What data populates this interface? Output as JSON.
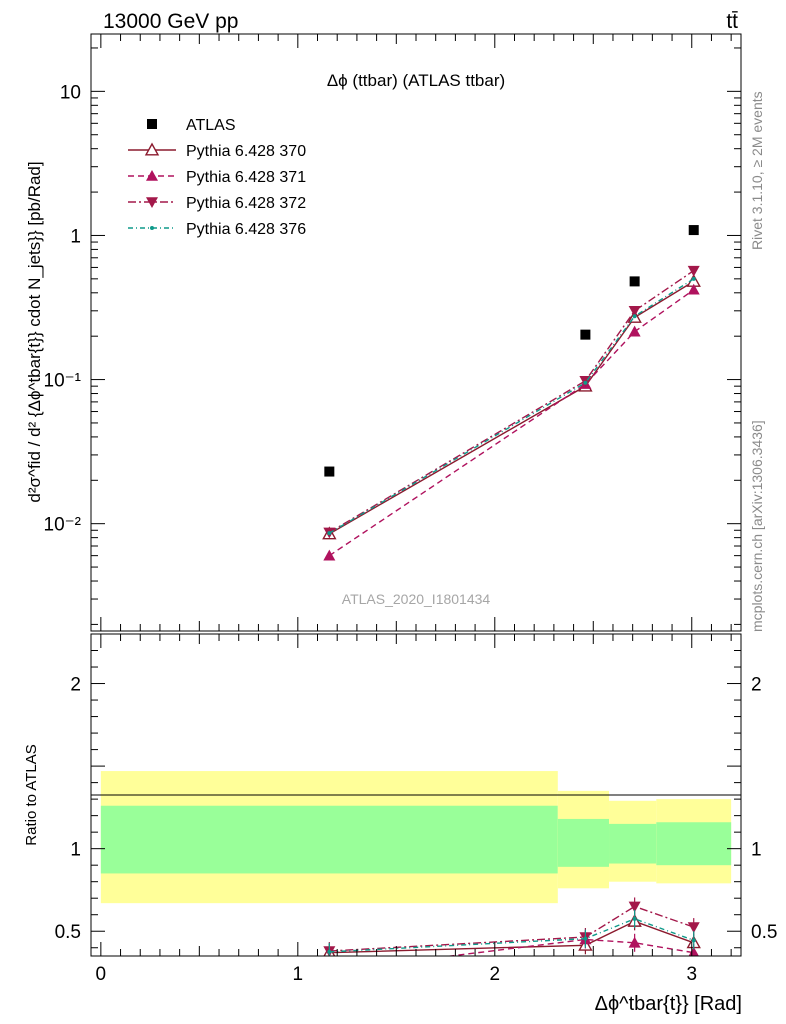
{
  "header": {
    "left_label": "13000 GeV pp",
    "right_label": "tt̄"
  },
  "side_labels": {
    "rivet": "Rivet 3.1.10, ≥ 2M events",
    "source": "mcplots.cern.ch [arXiv:1306.3436]"
  },
  "colors": {
    "atlas": "#000000",
    "p370": "#8b1a2e",
    "p371": "#b0125e",
    "p372": "#a3184a",
    "p376": "#0f9a8a",
    "band_inner": "#99ff99",
    "band_outer": "#ffff99"
  },
  "chart_data": [
    {
      "type": "scatter",
      "title": "Δϕ (ttbar) (ATLAS ttbar)",
      "watermark": "ATLAS_2020_I1801434",
      "ylabel": "d²σ^fid / d² {Δϕ^tbar{t}} cdot N_jets}} [pb/Rad]",
      "yscale": "log",
      "ylim": [
        0.0018,
        25
      ],
      "xlim": [
        -0.05,
        3.25
      ],
      "y_tick_labels": [
        "10⁻²",
        "10⁻¹",
        "1",
        "10"
      ],
      "legend_position": "top-left",
      "series": [
        {
          "name": "ATLAS",
          "marker": "square-filled",
          "line": "none",
          "x": [
            1.16,
            2.46,
            2.71,
            3.01
          ],
          "y": [
            0.023,
            0.205,
            0.48,
            1.09
          ]
        },
        {
          "name": "Pythia 6.428 370",
          "marker": "triangle-open",
          "line": "solid",
          "x": [
            1.16,
            2.46,
            2.71,
            3.01
          ],
          "y": [
            0.0085,
            0.09,
            0.27,
            0.48
          ]
        },
        {
          "name": "Pythia 6.428 371",
          "marker": "triangle-filled",
          "line": "dashed",
          "x": [
            1.16,
            2.46,
            2.71,
            3.01
          ],
          "y": [
            0.006,
            0.093,
            0.215,
            0.42
          ]
        },
        {
          "name": "Pythia 6.428 372",
          "marker": "triangle-down-filled",
          "line": "dashdot",
          "x": [
            1.16,
            2.46,
            2.71,
            3.01
          ],
          "y": [
            0.0087,
            0.098,
            0.3,
            0.57
          ]
        },
        {
          "name": "Pythia 6.428 376",
          "marker": "dot",
          "line": "dashdot",
          "x": [
            1.16,
            2.46,
            2.71,
            3.01
          ],
          "y": [
            0.0086,
            0.095,
            0.275,
            0.5
          ]
        }
      ]
    },
    {
      "type": "line",
      "xlabel": "Δϕ^tbar{t}} [Rad]",
      "ylabel": "Ratio to ATLAS",
      "ylim": [
        0.35,
        2.3
      ],
      "xlim": [
        -0.05,
        3.25
      ],
      "x_tick_labels": [
        "0",
        "1",
        "2",
        "3"
      ],
      "y_tick_labels": [
        "0.5",
        "1",
        "2"
      ],
      "bands": [
        {
          "x0": 0.0,
          "x1": 2.32,
          "inner": [
            0.85,
            1.26
          ],
          "outer": [
            0.67,
            1.47
          ]
        },
        {
          "x0": 2.32,
          "x1": 2.58,
          "inner": [
            0.89,
            1.18
          ],
          "outer": [
            0.76,
            1.35
          ]
        },
        {
          "x0": 2.58,
          "x1": 2.82,
          "inner": [
            0.91,
            1.15
          ],
          "outer": [
            0.8,
            1.29
          ]
        },
        {
          "x0": 2.82,
          "x1": 3.2,
          "inner": [
            0.9,
            1.16
          ],
          "outer": [
            0.79,
            1.3
          ]
        }
      ],
      "series": [
        {
          "name": "Pythia 6.428 370",
          "x": [
            1.16,
            2.46,
            2.71,
            3.01
          ],
          "y": [
            0.37,
            0.415,
            0.56,
            0.43
          ],
          "visible_from_x": 1.6
        },
        {
          "name": "Pythia 6.428 371",
          "x": [
            1.16,
            2.46,
            2.71,
            3.01
          ],
          "y": [
            0.26,
            0.45,
            0.43,
            0.37
          ],
          "visible_from_x": 1.6
        },
        {
          "name": "Pythia 6.428 372",
          "x": [
            1.16,
            2.46,
            2.71,
            3.01
          ],
          "y": [
            0.38,
            0.465,
            0.65,
            0.525
          ],
          "visible_from_x": 1.4
        },
        {
          "name": "Pythia 6.428 376",
          "x": [
            1.16,
            2.46,
            2.71,
            3.01
          ],
          "y": [
            0.375,
            0.455,
            0.575,
            0.445
          ],
          "visible_from_x": 1.6
        }
      ]
    }
  ]
}
